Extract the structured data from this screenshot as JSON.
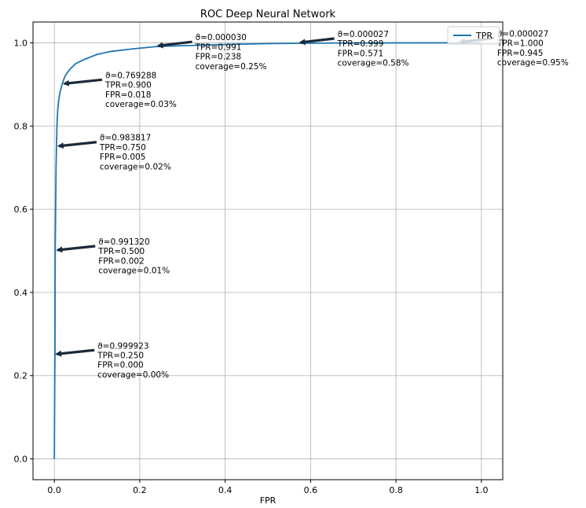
{
  "chart_data": {
    "type": "line",
    "title": "ROC Deep Neural Network",
    "xlabel": "FPR",
    "ylabel": "",
    "xlim": [
      -0.05,
      1.05
    ],
    "ylim": [
      -0.05,
      1.05
    ],
    "xticks": [
      0.0,
      0.2,
      0.4,
      0.6,
      0.8,
      1.0
    ],
    "yticks": [
      0.0,
      0.2,
      0.4,
      0.6,
      0.8,
      1.0
    ],
    "xtick_labels": [
      "0.0",
      "0.2",
      "0.4",
      "0.6",
      "0.8",
      "1.0"
    ],
    "ytick_labels": [
      "0.0",
      "0.2",
      "0.4",
      "0.6",
      "0.8",
      "1.0"
    ],
    "grid": true,
    "legend": {
      "position": "top-right"
    },
    "series": [
      {
        "name": "TPR",
        "color": "#1f77b4",
        "x": [
          0.0,
          0.0005,
          0.001,
          0.0015,
          0.002,
          0.003,
          0.004,
          0.005,
          0.006,
          0.008,
          0.01,
          0.013,
          0.018,
          0.025,
          0.035,
          0.05,
          0.07,
          0.1,
          0.13,
          0.18,
          0.238,
          0.3,
          0.4,
          0.5,
          0.571,
          0.65,
          0.8,
          0.945,
          1.0
        ],
        "y": [
          0.0,
          0.1,
          0.2,
          0.25,
          0.5,
          0.6,
          0.7,
          0.75,
          0.8,
          0.84,
          0.86,
          0.88,
          0.9,
          0.92,
          0.935,
          0.95,
          0.96,
          0.972,
          0.979,
          0.985,
          0.991,
          0.993,
          0.996,
          0.998,
          0.999,
          0.9995,
          0.9998,
          1.0,
          1.0
        ]
      }
    ],
    "annotations": [
      {
        "x": 0.0,
        "y": 0.25,
        "lines": [
          "ϑ=0.999923",
          "TPR=0.250",
          "FPR=0.000",
          "coverage=0.00%"
        ]
      },
      {
        "x": 0.002,
        "y": 0.5,
        "lines": [
          "ϑ=0.991320",
          "TPR=0.500",
          "FPR=0.002",
          "coverage=0.01%"
        ]
      },
      {
        "x": 0.005,
        "y": 0.75,
        "lines": [
          "ϑ=0.983817",
          "TPR=0.750",
          "FPR=0.005",
          "coverage=0.02%"
        ]
      },
      {
        "x": 0.018,
        "y": 0.9,
        "lines": [
          "ϑ=0.769288",
          "TPR=0.900",
          "FPR=0.018",
          "coverage=0.03%"
        ]
      },
      {
        "x": 0.238,
        "y": 0.991,
        "lines": [
          "ϑ=0.000030",
          "TPR=0.991",
          "FPR=0.238",
          "coverage=0.25%"
        ]
      },
      {
        "x": 0.571,
        "y": 0.999,
        "lines": [
          "ϑ=0.000027",
          "TPR=0.999",
          "FPR=0.571",
          "coverage=0.58%"
        ]
      },
      {
        "x": 0.945,
        "y": 1.0,
        "lines": [
          "ϑ=0.000027",
          "TPR=1.000",
          "FPR=0.945",
          "coverage=0.95%"
        ]
      }
    ]
  }
}
